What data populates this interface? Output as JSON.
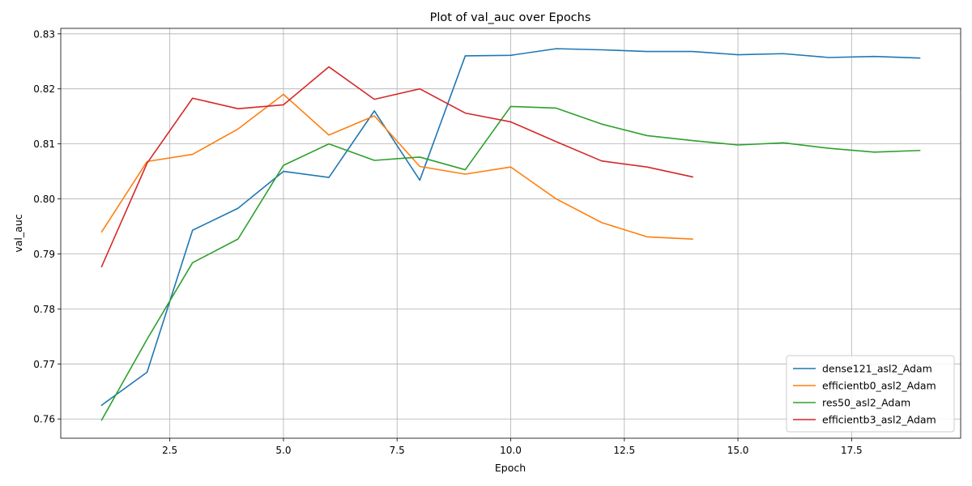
{
  "chart_data": {
    "type": "line",
    "title": "Plot of val_auc over Epochs",
    "xlabel": "Epoch",
    "ylabel": "val_auc",
    "xlim": [
      0.1,
      19.9
    ],
    "ylim": [
      0.7565,
      0.831
    ],
    "xticks": [
      2.5,
      5.0,
      7.5,
      10.0,
      12.5,
      15.0,
      17.5
    ],
    "xtick_labels": [
      "2.5",
      "5.0",
      "7.5",
      "10.0",
      "12.5",
      "15.0",
      "17.5"
    ],
    "yticks": [
      0.76,
      0.77,
      0.78,
      0.79,
      0.8,
      0.81,
      0.82,
      0.83
    ],
    "ytick_labels": [
      "0.76",
      "0.77",
      "0.78",
      "0.79",
      "0.80",
      "0.81",
      "0.82",
      "0.83"
    ],
    "grid": true,
    "legend_position": "bottom-right",
    "series": [
      {
        "name": "dense121_asl2_Adam",
        "color": "#1f77b4",
        "x": [
          1,
          2,
          3,
          4,
          5,
          6,
          7,
          8,
          9,
          10,
          11,
          12,
          13,
          14,
          15,
          16,
          17,
          18,
          19
        ],
        "values": [
          0.7625,
          0.7685,
          0.7943,
          0.7983,
          0.805,
          0.8039,
          0.816,
          0.8034,
          0.826,
          0.8261,
          0.8273,
          0.8271,
          0.8268,
          0.8268,
          0.8262,
          0.8264,
          0.8257,
          0.8259,
          0.8256
        ]
      },
      {
        "name": "efficientb0_asl2_Adam",
        "color": "#ff7f0e",
        "x": [
          1,
          2,
          3,
          4,
          5,
          6,
          7,
          8,
          9,
          10,
          11,
          12,
          13,
          14
        ],
        "values": [
          0.794,
          0.8068,
          0.8081,
          0.8127,
          0.819,
          0.8116,
          0.8151,
          0.8059,
          0.8045,
          0.8058,
          0.8,
          0.7957,
          0.7931,
          0.7927
        ]
      },
      {
        "name": "res50_asl2_Adam",
        "color": "#2ca02c",
        "x": [
          1,
          2,
          3,
          4,
          5,
          6,
          7,
          8,
          9,
          10,
          11,
          12,
          13,
          14,
          15,
          16,
          17,
          18,
          19
        ],
        "values": [
          0.7598,
          0.7745,
          0.7884,
          0.7927,
          0.8061,
          0.81,
          0.807,
          0.8076,
          0.8053,
          0.8168,
          0.8165,
          0.8136,
          0.8115,
          0.8106,
          0.8098,
          0.8102,
          0.8092,
          0.8085,
          0.8088
        ]
      },
      {
        "name": "efficientb3_asl2_Adam",
        "color": "#d62728",
        "x": [
          1,
          2,
          3,
          4,
          5,
          6,
          7,
          8,
          9,
          10,
          11,
          12,
          13,
          14
        ],
        "values": [
          0.7877,
          0.8065,
          0.8183,
          0.8164,
          0.8171,
          0.824,
          0.8181,
          0.82,
          0.8156,
          0.814,
          0.8104,
          0.8069,
          0.8058,
          0.804
        ]
      }
    ]
  }
}
